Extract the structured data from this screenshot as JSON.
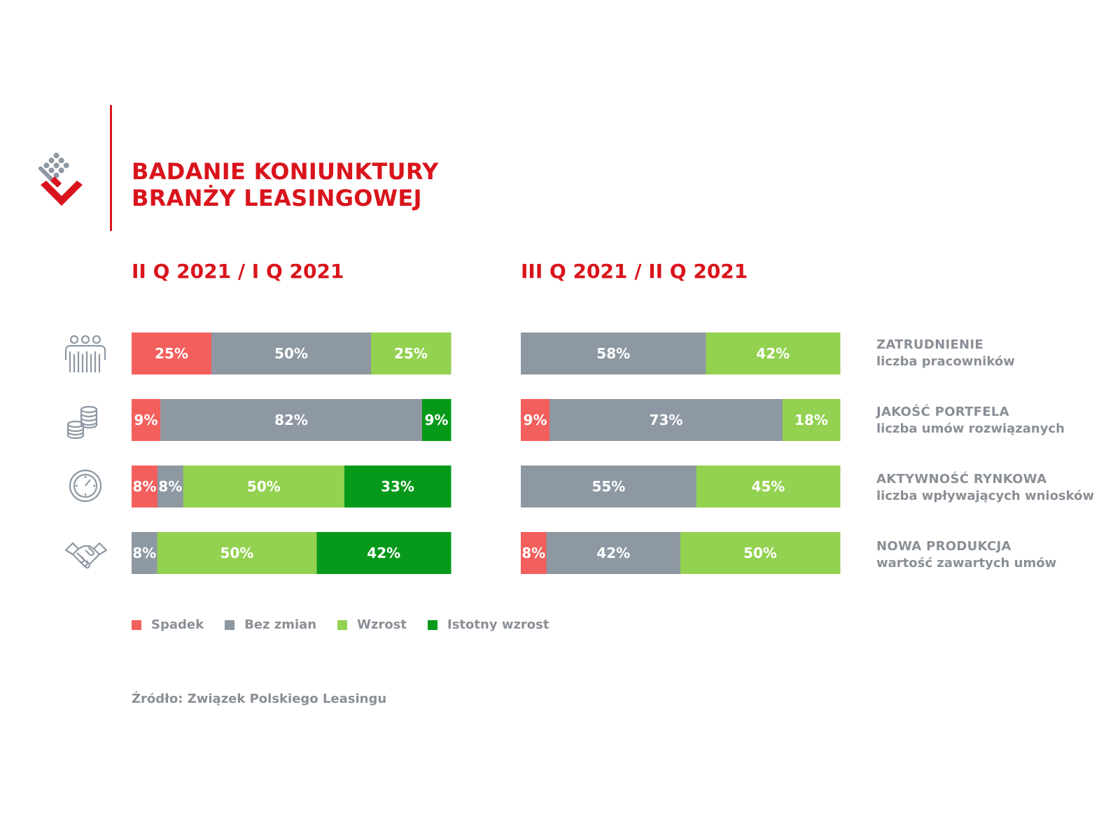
{
  "title": {
    "line1": "BADANIE KONIUNKTURY",
    "line2": "BRANŻY LEASINGOWEJ"
  },
  "icons": {
    "logo": "leasing-logo",
    "row_icons": [
      "people-icon",
      "coins-icon",
      "clock-icon",
      "handshake-icon"
    ]
  },
  "row_labels": [
    {
      "title": "ZATRUDNIENIE",
      "subtitle": "liczba pracowników"
    },
    {
      "title": "JAKOŚĆ PORTFELA",
      "subtitle": "liczba umów rozwiązanych"
    },
    {
      "title": "AKTYWNOŚĆ RYNKOWA",
      "subtitle": "liczba wpływających wniosków"
    },
    {
      "title": "NOWA PRODUKCJA",
      "subtitle": "wartość zawartych umów"
    }
  ],
  "legend": [
    {
      "label": "Spadek",
      "color": "#f25f5c"
    },
    {
      "label": "Bez zmian",
      "color": "#8e98a3"
    },
    {
      "label": "Wzrost",
      "color": "#93d150"
    },
    {
      "label": "Istotny wzrost",
      "color": "#079a1a"
    }
  ],
  "source": "Źródło: Związek Polskiego Leasingu",
  "chart_data": [
    {
      "type": "bar",
      "stacked": "100%",
      "orientation": "horizontal",
      "title": "II Q 2021 / I Q 2021",
      "categories": [
        "ZATRUDNIENIE",
        "JAKOŚĆ PORTFELA",
        "AKTYWNOŚĆ RYNKOWA",
        "NOWA PRODUKCJA"
      ],
      "series": [
        {
          "name": "Spadek",
          "color": "#f25f5c",
          "values": [
            25,
            9,
            8,
            0
          ]
        },
        {
          "name": "Bez zmian",
          "color": "#8e98a3",
          "values": [
            50,
            82,
            8,
            8
          ]
        },
        {
          "name": "Wzrost",
          "color": "#93d150",
          "values": [
            25,
            0,
            50,
            50
          ]
        },
        {
          "name": "Istotny wzrost",
          "color": "#079a1a",
          "values": [
            0,
            9,
            33,
            42
          ]
        }
      ],
      "value_suffix": "%",
      "legend": "bottom-left",
      "grid": false
    },
    {
      "type": "bar",
      "stacked": "100%",
      "orientation": "horizontal",
      "title": "III Q 2021 / II Q 2021",
      "categories": [
        "ZATRUDNIENIE",
        "JAKOŚĆ PORTFELA",
        "AKTYWNOŚĆ RYNKOWA",
        "NOWA PRODUKCJA"
      ],
      "series": [
        {
          "name": "Spadek",
          "color": "#f25f5c",
          "values": [
            0,
            9,
            0,
            8
          ]
        },
        {
          "name": "Bez zmian",
          "color": "#8e98a3",
          "values": [
            58,
            73,
            55,
            42
          ]
        },
        {
          "name": "Wzrost",
          "color": "#93d150",
          "values": [
            42,
            18,
            45,
            50
          ]
        },
        {
          "name": "Istotny wzrost",
          "color": "#079a1a",
          "values": [
            0,
            0,
            0,
            0
          ]
        }
      ],
      "value_suffix": "%",
      "legend": "bottom-left",
      "grid": false
    }
  ]
}
